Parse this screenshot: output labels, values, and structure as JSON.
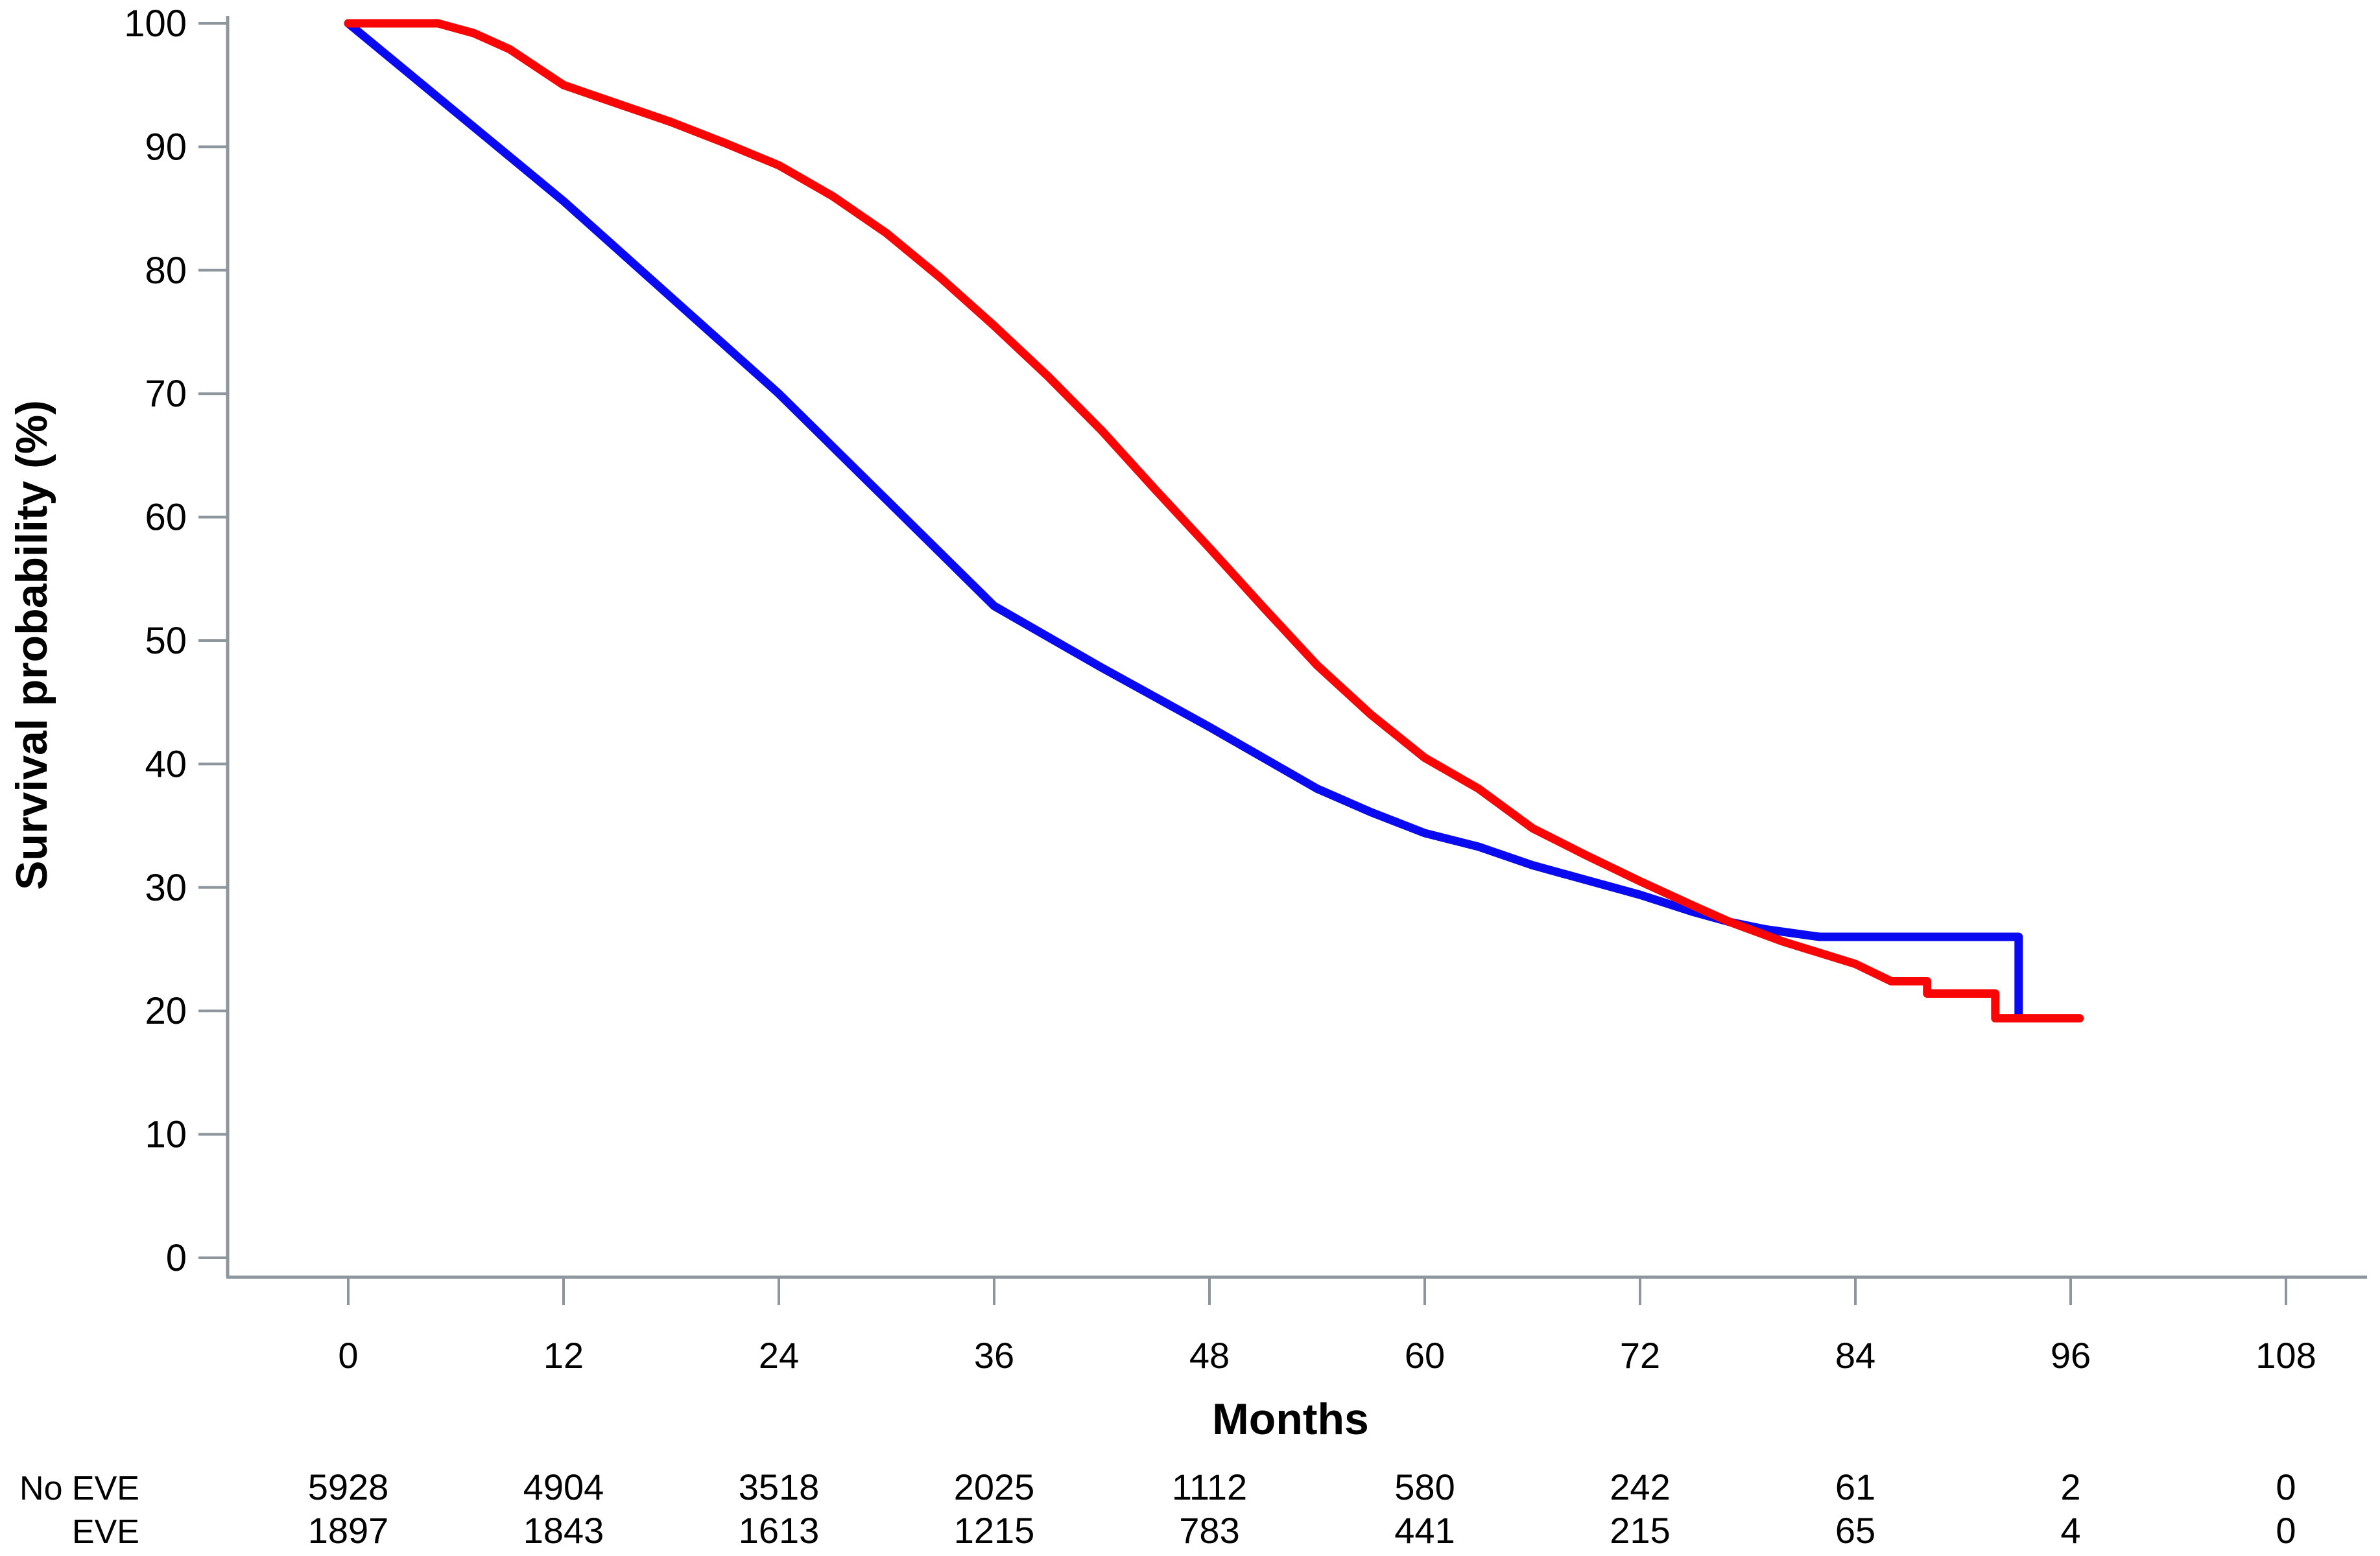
{
  "chart_data": {
    "type": "line",
    "subtype": "kaplan-meier-survival",
    "title": "",
    "xlabel": "Months",
    "ylabel": "Survival probability (%)",
    "xlim": [
      0,
      108
    ],
    "ylim": [
      0,
      100
    ],
    "xticks": [
      0,
      12,
      24,
      36,
      48,
      60,
      72,
      84,
      96,
      108
    ],
    "yticks": [
      0,
      10,
      20,
      30,
      40,
      50,
      60,
      70,
      80,
      90,
      100
    ],
    "grid": false,
    "legend_position": "none",
    "axis_color": "#8d959d",
    "series": [
      {
        "name": "No EVE",
        "color": "#0a0af0",
        "points": [
          [
            0,
            100
          ],
          [
            3,
            96.4
          ],
          [
            6,
            92.8
          ],
          [
            9,
            89.2
          ],
          [
            12,
            85.6
          ],
          [
            15,
            81.7
          ],
          [
            18,
            77.8
          ],
          [
            21,
            73.9
          ],
          [
            24,
            70
          ],
          [
            27,
            65.7
          ],
          [
            30,
            61.4
          ],
          [
            33,
            57.1
          ],
          [
            36,
            52.8
          ],
          [
            39,
            50.3
          ],
          [
            42,
            47.8
          ],
          [
            45,
            45.4
          ],
          [
            48,
            43
          ],
          [
            51,
            40.5
          ],
          [
            54,
            38
          ],
          [
            57,
            36.1
          ],
          [
            60,
            34.4
          ],
          [
            63,
            33.3
          ],
          [
            66,
            31.8
          ],
          [
            69,
            30.6
          ],
          [
            72,
            29.4
          ],
          [
            75,
            28
          ],
          [
            77,
            27.2
          ],
          [
            79,
            26.6
          ],
          [
            82,
            26
          ],
          [
            93.1,
            26
          ],
          [
            93.1,
            19.7
          ]
        ]
      },
      {
        "name": "EVE",
        "color": "#f80505",
        "points": [
          [
            0,
            100
          ],
          [
            5,
            100
          ],
          [
            7,
            99.2
          ],
          [
            9,
            97.9
          ],
          [
            12,
            95
          ],
          [
            15,
            93.5
          ],
          [
            18,
            92
          ],
          [
            21,
            90.3
          ],
          [
            24,
            88.5
          ],
          [
            27,
            86
          ],
          [
            30,
            83
          ],
          [
            33,
            79.4
          ],
          [
            36,
            75.5
          ],
          [
            39,
            71.4
          ],
          [
            42,
            67
          ],
          [
            45,
            62.2
          ],
          [
            48,
            57.5
          ],
          [
            51,
            52.7
          ],
          [
            54,
            48
          ],
          [
            57,
            44
          ],
          [
            60,
            40.5
          ],
          [
            63,
            38
          ],
          [
            66,
            34.8
          ],
          [
            69,
            32.6
          ],
          [
            72,
            30.5
          ],
          [
            75,
            28.5
          ],
          [
            77,
            27.2
          ],
          [
            80,
            25.6
          ],
          [
            82,
            24.7
          ],
          [
            84,
            23.8
          ],
          [
            86,
            22.4
          ],
          [
            88,
            22.4
          ],
          [
            88,
            21.4
          ],
          [
            91.8,
            21.4
          ],
          [
            91.8,
            19.4
          ],
          [
            96.5,
            19.4
          ]
        ]
      }
    ],
    "risk_table": {
      "columns_months": [
        0,
        12,
        24,
        36,
        48,
        60,
        72,
        84,
        96,
        108
      ],
      "rows": [
        {
          "label": "No EVE",
          "color": "#0a0af0",
          "values": [
            "5928",
            "4904",
            "3518",
            "2025",
            "1112",
            "580",
            "242",
            "61",
            "2",
            "0"
          ]
        },
        {
          "label": "EVE",
          "color": "#f80505",
          "values": [
            "1897",
            "1843",
            "1613",
            "1215",
            "783",
            "441",
            "215",
            "65",
            "4",
            "0"
          ]
        }
      ]
    }
  }
}
